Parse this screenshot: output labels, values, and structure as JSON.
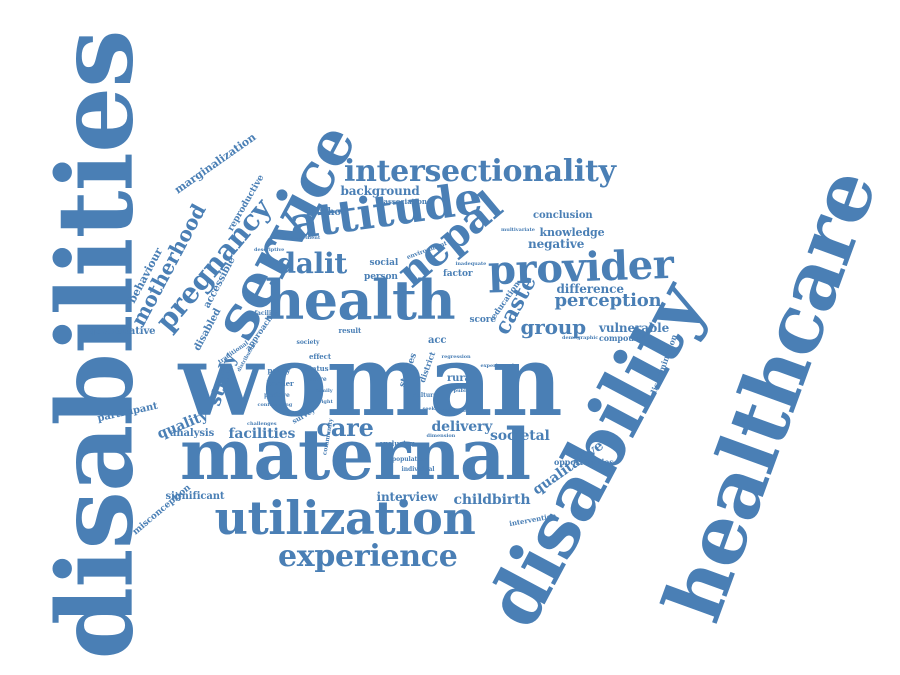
{
  "color": "#4a7fb5",
  "words": [
    {
      "text": "disabilities"
    },
    {
      "text": "healthcare"
    },
    {
      "text": "disability"
    },
    {
      "text": "woman"
    },
    {
      "text": "maternal"
    },
    {
      "text": "service"
    },
    {
      "text": "health"
    },
    {
      "text": "utilization"
    },
    {
      "text": "attitude"
    },
    {
      "text": "provider"
    },
    {
      "text": "nepal"
    },
    {
      "text": "intersectionality"
    },
    {
      "text": "experience"
    },
    {
      "text": "pregnancy"
    },
    {
      "text": "dalit"
    },
    {
      "text": "care"
    },
    {
      "text": "motherhood"
    },
    {
      "text": "caste"
    },
    {
      "text": "group"
    },
    {
      "text": "perception"
    },
    {
      "text": "study"
    },
    {
      "text": "facilities"
    },
    {
      "text": "quality"
    },
    {
      "text": "delivery"
    },
    {
      "text": "societal"
    },
    {
      "text": "childbirth"
    },
    {
      "text": "qualitative"
    },
    {
      "text": "interview"
    },
    {
      "text": "background"
    },
    {
      "text": "negative"
    },
    {
      "text": "difference"
    },
    {
      "text": "vulnerable"
    },
    {
      "text": "knowledge"
    },
    {
      "text": "conclusion"
    },
    {
      "text": "behaviour"
    },
    {
      "text": "marginalization"
    },
    {
      "text": "accessible"
    },
    {
      "text": "disabled"
    },
    {
      "text": "reproductive"
    },
    {
      "text": "quantitative"
    },
    {
      "text": "analysis"
    },
    {
      "text": "participant"
    },
    {
      "text": "significant"
    },
    {
      "text": "misconception"
    },
    {
      "text": "opportunities"
    },
    {
      "text": "method"
    },
    {
      "text": "association"
    },
    {
      "text": "social"
    },
    {
      "text": "person"
    },
    {
      "text": "acc"
    },
    {
      "text": "rural"
    },
    {
      "text": "studies"
    },
    {
      "text": "factor"
    },
    {
      "text": "score"
    },
    {
      "text": "result"
    },
    {
      "text": "education"
    },
    {
      "text": "compound"
    },
    {
      "text": "discrimination"
    },
    {
      "text": "exclusion"
    },
    {
      "text": "intervention"
    },
    {
      "text": "policy"
    },
    {
      "text": "barrier"
    },
    {
      "text": "effect"
    },
    {
      "text": "status"
    },
    {
      "text": "survey"
    },
    {
      "text": "approach"
    },
    {
      "text": "traditional"
    },
    {
      "text": "facility"
    },
    {
      "text": "positive"
    },
    {
      "text": "district"
    },
    {
      "text": "society"
    },
    {
      "text": "more"
    },
    {
      "text": "environment"
    },
    {
      "text": "improvement"
    },
    {
      "text": "cultural"
    },
    {
      "text": "population"
    },
    {
      "text": "individual"
    },
    {
      "text": "community"
    },
    {
      "text": "dimension"
    },
    {
      "text": "demographic"
    },
    {
      "text": "descriptive"
    },
    {
      "text": "distribution"
    },
    {
      "text": "family"
    },
    {
      "text": "right"
    },
    {
      "text": "public"
    },
    {
      "text": "seeking"
    },
    {
      "text": "different"
    },
    {
      "text": "inadequate"
    },
    {
      "text": "confounding"
    },
    {
      "text": "multivariate"
    },
    {
      "text": "regression"
    },
    {
      "text": "experienced"
    },
    {
      "text": "challenges"
    }
  ]
}
